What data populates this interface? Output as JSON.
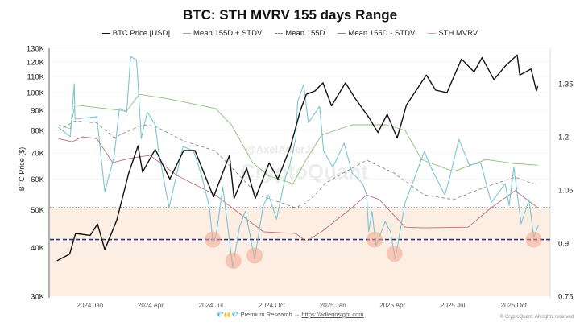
{
  "chart_data": {
    "type": "line",
    "title": "BTC: STH MVRV 155 days Range",
    "ylabel": "BTC Price ($)",
    "y_left": {
      "scale": "log",
      "range": [
        30000,
        130000
      ],
      "ticks": [
        "130K",
        "120K",
        "110K",
        "100K",
        "90K",
        "80K",
        "70K",
        "60K",
        "50K",
        "40K",
        "30K"
      ],
      "tick_values": [
        130000,
        120000,
        110000,
        100000,
        90000,
        80000,
        70000,
        60000,
        50000,
        40000,
        30000
      ]
    },
    "y_right": {
      "scale": "linear",
      "range": [
        0.75,
        1.45
      ],
      "ticks": [
        "1.35",
        "1.2",
        "1.05",
        "0.9",
        "0.75"
      ],
      "tick_values": [
        1.35,
        1.2,
        1.05,
        0.9,
        0.75
      ]
    },
    "x_range": [
      "2023-11-11",
      "2025-11-07"
    ],
    "x_ticks": [
      {
        "label": "2024 Jan",
        "date": "2024-01-01"
      },
      {
        "label": "2024 Apr",
        "date": "2024-04-01"
      },
      {
        "label": "2024 Jul",
        "date": "2024-07-01"
      },
      {
        "label": "2024 Oct",
        "date": "2024-10-01"
      },
      {
        "label": "2025 Jan",
        "date": "2025-01-01"
      },
      {
        "label": "2025 Apr",
        "date": "2025-04-01"
      },
      {
        "label": "2025 Jul",
        "date": "2025-07-01"
      },
      {
        "label": "2025 Oct",
        "date": "2025-10-01"
      }
    ],
    "legend_position": "top-center",
    "grid": true,
    "series": [
      {
        "name": "BTC Price [USD]",
        "axis": "left",
        "color": "#111111",
        "style": "solid",
        "points": [
          [
            "2023-11-12",
            37000
          ],
          [
            "2023-12-01",
            38500
          ],
          [
            "2023-12-10",
            43500
          ],
          [
            "2024-01-01",
            43000
          ],
          [
            "2024-01-12",
            46000
          ],
          [
            "2024-01-23",
            39500
          ],
          [
            "2024-02-10",
            47000
          ],
          [
            "2024-02-28",
            62000
          ],
          [
            "2024-03-13",
            73000
          ],
          [
            "2024-03-20",
            62500
          ],
          [
            "2024-04-08",
            71500
          ],
          [
            "2024-04-30",
            60000
          ],
          [
            "2024-05-21",
            71000
          ],
          [
            "2024-06-07",
            71000
          ],
          [
            "2024-07-05",
            54000
          ],
          [
            "2024-07-29",
            69000
          ],
          [
            "2024-08-05",
            53500
          ],
          [
            "2024-08-24",
            64000
          ],
          [
            "2024-09-06",
            53500
          ],
          [
            "2024-09-27",
            66000
          ],
          [
            "2024-10-10",
            60000
          ],
          [
            "2024-10-29",
            72500
          ],
          [
            "2024-11-13",
            90000
          ],
          [
            "2024-11-22",
            99000
          ],
          [
            "2024-12-05",
            101000
          ],
          [
            "2024-12-17",
            106000
          ],
          [
            "2024-12-30",
            92500
          ],
          [
            "2025-01-20",
            106000
          ],
          [
            "2025-02-03",
            97000
          ],
          [
            "2025-02-25",
            86000
          ],
          [
            "2025-03-10",
            79000
          ],
          [
            "2025-03-24",
            88000
          ],
          [
            "2025-04-08",
            76500
          ],
          [
            "2025-04-22",
            93000
          ],
          [
            "2025-05-22",
            111000
          ],
          [
            "2025-06-05",
            101500
          ],
          [
            "2025-06-22",
            100000
          ],
          [
            "2025-07-14",
            122000
          ],
          [
            "2025-08-02",
            113000
          ],
          [
            "2025-08-14",
            123000
          ],
          [
            "2025-09-01",
            108000
          ],
          [
            "2025-09-18",
            117000
          ],
          [
            "2025-10-06",
            125000
          ],
          [
            "2025-10-10",
            111000
          ],
          [
            "2025-10-27",
            115000
          ],
          [
            "2025-11-04",
            101000
          ],
          [
            "2025-11-06",
            104000
          ]
        ]
      },
      {
        "name": "Mean 155D + STDV",
        "axis": "right",
        "color": "#8dbf7a",
        "style": "solid",
        "points": [
          [
            "2023-11-14",
            1.234
          ],
          [
            "2023-12-02",
            1.223
          ],
          [
            "2023-12-09",
            1.29
          ],
          [
            "2024-01-23",
            1.28
          ],
          [
            "2024-02-25",
            1.273
          ],
          [
            "2024-03-15",
            1.32
          ],
          [
            "2024-04-29",
            1.307
          ],
          [
            "2024-07-08",
            1.28
          ],
          [
            "2024-08-01",
            1.234
          ],
          [
            "2024-09-02",
            1.127
          ],
          [
            "2024-09-26",
            1.09
          ],
          [
            "2024-11-02",
            1.068
          ],
          [
            "2024-11-22",
            1.136
          ],
          [
            "2024-12-15",
            1.205
          ],
          [
            "2025-01-30",
            1.234
          ],
          [
            "2025-03-23",
            1.234
          ],
          [
            "2025-04-20",
            1.218
          ],
          [
            "2025-05-15",
            1.136
          ],
          [
            "2025-07-02",
            1.102
          ],
          [
            "2025-08-20",
            1.136
          ],
          [
            "2025-09-30",
            1.125
          ],
          [
            "2025-11-06",
            1.12
          ]
        ]
      },
      {
        "name": "Mean 155D",
        "axis": "right",
        "color": "#888888",
        "style": "dashed",
        "points": [
          [
            "2023-11-14",
            1.218
          ],
          [
            "2023-12-09",
            1.245
          ],
          [
            "2024-01-11",
            1.239
          ],
          [
            "2024-02-06",
            1.198
          ],
          [
            "2024-03-20",
            1.234
          ],
          [
            "2024-04-08",
            1.23
          ],
          [
            "2024-05-20",
            1.189
          ],
          [
            "2024-07-08",
            1.16
          ],
          [
            "2024-09-10",
            1.036
          ],
          [
            "2024-11-06",
            1.0
          ],
          [
            "2024-11-22",
            1.014
          ],
          [
            "2024-12-05",
            1.036
          ],
          [
            "2024-12-21",
            1.07
          ],
          [
            "2025-02-21",
            1.134
          ],
          [
            "2025-04-03",
            1.098
          ],
          [
            "2025-05-19",
            1.036
          ],
          [
            "2025-07-02",
            1.023
          ],
          [
            "2025-08-20",
            1.059
          ],
          [
            "2025-10-03",
            1.086
          ],
          [
            "2025-11-06",
            1.064
          ]
        ]
      },
      {
        "name": "Mean 155D - STDV",
        "axis": "right",
        "color": "#b9707f",
        "style": "solid",
        "points": [
          [
            "2023-11-14",
            1.195
          ],
          [
            "2023-12-05",
            1.186
          ],
          [
            "2023-12-20",
            1.2
          ],
          [
            "2024-01-11",
            1.195
          ],
          [
            "2024-02-04",
            1.127
          ],
          [
            "2024-02-29",
            1.139
          ],
          [
            "2024-03-31",
            1.148
          ],
          [
            "2024-05-11",
            1.091
          ],
          [
            "2024-07-08",
            1.036
          ],
          [
            "2024-08-08",
            0.991
          ],
          [
            "2024-09-18",
            0.932
          ],
          [
            "2024-11-06",
            0.927
          ],
          [
            "2024-11-22",
            0.905
          ],
          [
            "2024-12-15",
            0.932
          ],
          [
            "2025-01-30",
            1.0
          ],
          [
            "2025-02-21",
            1.036
          ],
          [
            "2025-03-12",
            1.023
          ],
          [
            "2025-04-20",
            0.945
          ],
          [
            "2025-05-19",
            0.943
          ],
          [
            "2025-07-24",
            0.945
          ],
          [
            "2025-08-28",
            1.0
          ],
          [
            "2025-10-03",
            1.048
          ],
          [
            "2025-11-06",
            1.0
          ]
        ]
      },
      {
        "name": "STH MVRV",
        "axis": "right",
        "color": "#7cc4d4",
        "style": "solid",
        "points": [
          [
            "2023-11-14",
            1.227
          ],
          [
            "2023-12-02",
            1.2
          ],
          [
            "2023-12-08",
            1.35
          ],
          [
            "2023-12-09",
            1.25
          ],
          [
            "2024-01-11",
            1.257
          ],
          [
            "2024-01-23",
            1.045
          ],
          [
            "2024-02-06",
            1.143
          ],
          [
            "2024-02-14",
            1.28
          ],
          [
            "2024-02-25",
            1.27
          ],
          [
            "2024-03-02",
            1.427
          ],
          [
            "2024-03-11",
            1.416
          ],
          [
            "2024-03-18",
            1.195
          ],
          [
            "2024-03-27",
            1.27
          ],
          [
            "2024-04-08",
            1.234
          ],
          [
            "2024-04-13",
            1.16
          ],
          [
            "2024-04-29",
            1.0
          ],
          [
            "2024-05-20",
            1.173
          ],
          [
            "2024-06-05",
            1.16
          ],
          [
            "2024-06-17",
            1.09
          ],
          [
            "2024-06-29",
            1.0
          ],
          [
            "2024-07-04",
            0.9
          ],
          [
            "2024-07-09",
            0.923
          ],
          [
            "2024-07-19",
            1.059
          ],
          [
            "2024-08-03",
            0.832
          ],
          [
            "2024-08-13",
            0.945
          ],
          [
            "2024-08-22",
            0.99
          ],
          [
            "2024-09-05",
            0.855
          ],
          [
            "2024-09-18",
            1.006
          ],
          [
            "2024-09-26",
            1.036
          ],
          [
            "2024-10-08",
            0.968
          ],
          [
            "2024-10-20",
            1.075
          ],
          [
            "2024-10-28",
            1.12
          ],
          [
            "2024-11-06",
            1.195
          ],
          [
            "2024-11-09",
            1.3
          ],
          [
            "2024-11-18",
            1.348
          ],
          [
            "2024-11-25",
            1.24
          ],
          [
            "2024-12-12",
            1.286
          ],
          [
            "2024-12-18",
            1.16
          ],
          [
            "2025-01-01",
            1.114
          ],
          [
            "2025-01-18",
            1.182
          ],
          [
            "2025-01-30",
            1.098
          ],
          [
            "2025-02-15",
            1.068
          ],
          [
            "2025-02-21",
            1.036
          ],
          [
            "2025-02-24",
            0.932
          ],
          [
            "2025-03-01",
            0.99
          ],
          [
            "2025-03-07",
            0.893
          ],
          [
            "2025-03-21",
            0.961
          ],
          [
            "2025-03-29",
            0.932
          ],
          [
            "2025-04-05",
            0.855
          ],
          [
            "2025-04-20",
            1.014
          ],
          [
            "2025-05-07",
            1.098
          ],
          [
            "2025-05-19",
            1.159
          ],
          [
            "2025-05-31",
            1.105
          ],
          [
            "2025-06-19",
            1.036
          ],
          [
            "2025-06-28",
            1.098
          ],
          [
            "2025-07-10",
            1.193
          ],
          [
            "2025-07-26",
            1.12
          ],
          [
            "2025-08-12",
            1.127
          ],
          [
            "2025-08-28",
            1.014
          ],
          [
            "2025-09-18",
            1.068
          ],
          [
            "2025-09-24",
            1.006
          ],
          [
            "2025-10-01",
            1.114
          ],
          [
            "2025-10-12",
            0.955
          ],
          [
            "2025-10-24",
            1.023
          ],
          [
            "2025-10-31",
            0.916
          ],
          [
            "2025-11-07",
            0.95
          ]
        ]
      }
    ],
    "reference_lines": [
      {
        "axis": "right",
        "value": 1.0,
        "color": "#444444",
        "style": "dotted"
      },
      {
        "axis": "right",
        "value": 0.91,
        "color": "#2233aa",
        "style": "dashed"
      }
    ],
    "shaded_region": {
      "axis": "right",
      "from": 0.75,
      "to": 1.0,
      "color": "#fdeee3"
    },
    "highlight_circles": [
      {
        "date": "2024-07-04",
        "value": 0.91
      },
      {
        "date": "2024-08-04",
        "value": 0.85
      },
      {
        "date": "2024-09-05",
        "value": 0.865
      },
      {
        "date": "2025-03-05",
        "value": 0.91
      },
      {
        "date": "2025-04-04",
        "value": 0.87
      },
      {
        "date": "2025-10-31",
        "value": 0.91
      }
    ],
    "highlight_color": "#f4a590",
    "watermarks": [
      "@AxelAdlerJr",
      "CryptoQuant"
    ]
  },
  "footer": {
    "emoji": "💎🙌💎",
    "text": "Premium Research →",
    "link": "https://adlerinsight.com",
    "copyright": "© CryptoQuant. All rights reserved"
  }
}
